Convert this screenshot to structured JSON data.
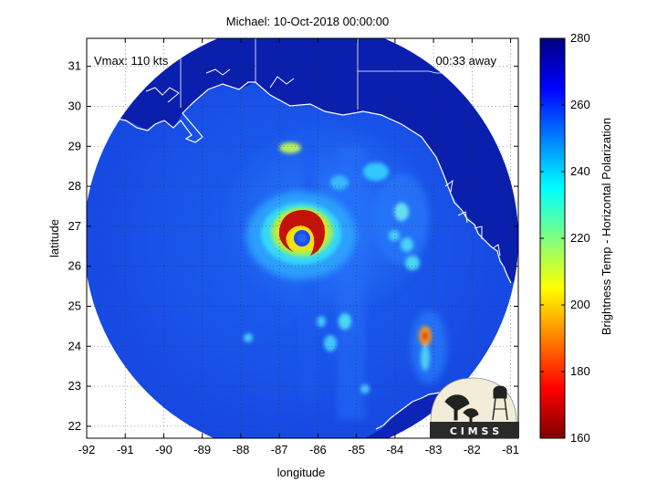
{
  "title": "Michael: 10-Oct-2018 00:00:00",
  "annotations": {
    "vmax": "Vmax: 110 kts",
    "time_away": "00:33 away"
  },
  "axes": {
    "xlabel": "longitude",
    "ylabel": "latitude",
    "xlim": [
      -92,
      -80.8
    ],
    "ylim": [
      21.7,
      31.7
    ],
    "xticks": [
      "-92",
      "-91",
      "-90",
      "-89",
      "-88",
      "-87",
      "-86",
      "-85",
      "-84",
      "-83",
      "-82",
      "-81"
    ],
    "yticks": [
      "22",
      "23",
      "24",
      "25",
      "26",
      "27",
      "28",
      "29",
      "30",
      "31"
    ],
    "grid": "dotted"
  },
  "colorbar": {
    "label": "Brightness Temp - Horizontal Polarization",
    "min": 160,
    "max": 280,
    "ticks": [
      "160",
      "180",
      "200",
      "220",
      "240",
      "260",
      "280"
    ],
    "colormap": "jet"
  },
  "storm": {
    "eye_lon": -86.55,
    "eye_lat": 26.72
  },
  "logo": {
    "text": "C I M S S"
  },
  "colors": {
    "background": "#0a1fb3",
    "ocean": "#1a4ee8",
    "coastline": "#ffffff",
    "eyewall": "#c41208",
    "eye": "#1450f0"
  }
}
